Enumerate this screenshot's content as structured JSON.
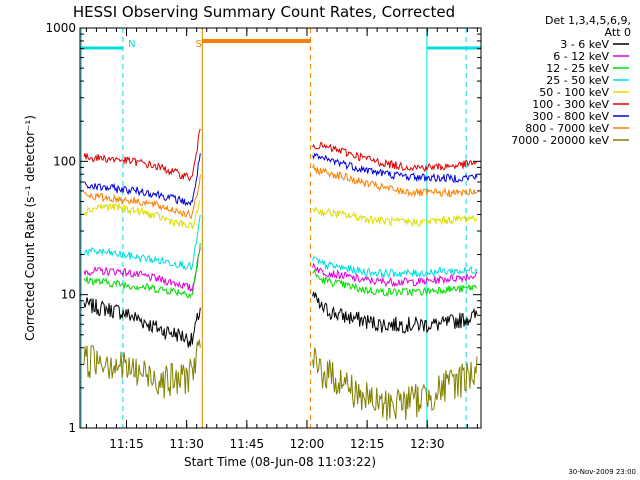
{
  "chart_data": {
    "type": "line",
    "title": "HESSI Observing Summary Count Rates, Corrected",
    "xlabel": "Start Time (08-Jun-08 11:03:22)",
    "ylabel": "Corrected Count Rate (s⁻¹ detector⁻¹)",
    "y_scale": "log",
    "ylim": [
      1,
      1000
    ],
    "x_range_minutes": [
      0,
      100
    ],
    "x_ticks": [
      {
        "label": "11:15",
        "minute": 11.6
      },
      {
        "label": "11:30",
        "minute": 26.6
      },
      {
        "label": "11:45",
        "minute": 41.6
      },
      {
        "label": "12:00",
        "minute": 56.6
      },
      {
        "label": "12:15",
        "minute": 71.6
      },
      {
        "label": "12:30",
        "minute": 86.6
      }
    ],
    "y_ticks": [
      "1",
      "10",
      "100",
      "1000"
    ],
    "data_gaps_minutes": [
      [
        31,
        58
      ]
    ],
    "legend_title": [
      "Det 1,3,4,5,6,9,",
      "Att 0"
    ],
    "series": [
      {
        "name": "3 - 6 keV",
        "color": "#000000",
        "points": [
          [
            1,
            8.5
          ],
          [
            5,
            8
          ],
          [
            10,
            7.5
          ],
          [
            15,
            6.5
          ],
          [
            20,
            5.5
          ],
          [
            25,
            5
          ],
          [
            28,
            4.5
          ],
          [
            30,
            8
          ],
          [
            58,
            10
          ],
          [
            60,
            8
          ],
          [
            65,
            7
          ],
          [
            70,
            6.5
          ],
          [
            75,
            6
          ],
          [
            80,
            6
          ],
          [
            85,
            6
          ],
          [
            90,
            6
          ],
          [
            95,
            6.5
          ],
          [
            99,
            7
          ]
        ]
      },
      {
        "name": "6 - 12 keV",
        "color": "#dd00dd",
        "points": [
          [
            1,
            15
          ],
          [
            5,
            15
          ],
          [
            10,
            15
          ],
          [
            15,
            14
          ],
          [
            20,
            13
          ],
          [
            25,
            12
          ],
          [
            28,
            11
          ],
          [
            30,
            22
          ],
          [
            58,
            17
          ],
          [
            60,
            15
          ],
          [
            65,
            14
          ],
          [
            70,
            13
          ],
          [
            75,
            12.5
          ],
          [
            80,
            12.5
          ],
          [
            85,
            12.5
          ],
          [
            90,
            13
          ],
          [
            95,
            13.5
          ],
          [
            99,
            14
          ]
        ]
      },
      {
        "name": "12 - 25 keV",
        "color": "#00dd00",
        "points": [
          [
            1,
            13
          ],
          [
            5,
            12.5
          ],
          [
            10,
            12
          ],
          [
            15,
            11.5
          ],
          [
            20,
            11
          ],
          [
            25,
            10.5
          ],
          [
            28,
            10
          ],
          [
            30,
            24
          ],
          [
            58,
            15
          ],
          [
            60,
            13
          ],
          [
            65,
            12
          ],
          [
            70,
            11
          ],
          [
            75,
            10.5
          ],
          [
            80,
            10.5
          ],
          [
            85,
            10.5
          ],
          [
            90,
            11
          ],
          [
            95,
            11
          ],
          [
            99,
            11.5
          ]
        ]
      },
      {
        "name": "25 - 50 keV",
        "color": "#00dddd",
        "points": [
          [
            1,
            21
          ],
          [
            5,
            21
          ],
          [
            10,
            20
          ],
          [
            15,
            19
          ],
          [
            20,
            18
          ],
          [
            25,
            17
          ],
          [
            28,
            16
          ],
          [
            30,
            38
          ],
          [
            58,
            19
          ],
          [
            60,
            17
          ],
          [
            65,
            16
          ],
          [
            70,
            15
          ],
          [
            75,
            14.5
          ],
          [
            80,
            14.5
          ],
          [
            85,
            14.5
          ],
          [
            90,
            15
          ],
          [
            95,
            15
          ],
          [
            99,
            15.5
          ]
        ]
      },
      {
        "name": "50 - 100 keV",
        "color": "#dddd00",
        "points": [
          [
            1,
            42
          ],
          [
            5,
            46
          ],
          [
            10,
            45
          ],
          [
            15,
            42
          ],
          [
            20,
            38
          ],
          [
            25,
            34
          ],
          [
            28,
            32
          ],
          [
            30,
            50
          ],
          [
            58,
            45
          ],
          [
            60,
            42
          ],
          [
            65,
            40
          ],
          [
            70,
            38
          ],
          [
            75,
            36
          ],
          [
            80,
            35
          ],
          [
            85,
            35
          ],
          [
            90,
            36
          ],
          [
            95,
            37
          ],
          [
            99,
            38
          ]
        ]
      },
      {
        "name": "100 - 300 keV",
        "color": "#dd0000",
        "points": [
          [
            1,
            108
          ],
          [
            5,
            106
          ],
          [
            10,
            103
          ],
          [
            15,
            98
          ],
          [
            20,
            90
          ],
          [
            25,
            80
          ],
          [
            28,
            75
          ],
          [
            30,
            175
          ],
          [
            58,
            135
          ],
          [
            60,
            130
          ],
          [
            65,
            120
          ],
          [
            70,
            108
          ],
          [
            75,
            98
          ],
          [
            80,
            92
          ],
          [
            85,
            90
          ],
          [
            90,
            91
          ],
          [
            95,
            94
          ],
          [
            99,
            98
          ]
        ]
      },
      {
        "name": "300 - 800 keV",
        "color": "#0000dd",
        "points": [
          [
            1,
            66
          ],
          [
            5,
            64
          ],
          [
            10,
            62
          ],
          [
            15,
            60
          ],
          [
            20,
            56
          ],
          [
            25,
            51
          ],
          [
            28,
            48
          ],
          [
            30,
            115
          ],
          [
            58,
            108
          ],
          [
            60,
            105
          ],
          [
            65,
            98
          ],
          [
            70,
            88
          ],
          [
            75,
            82
          ],
          [
            80,
            78
          ],
          [
            85,
            76
          ],
          [
            90,
            75
          ],
          [
            95,
            75
          ],
          [
            99,
            77
          ]
        ]
      },
      {
        "name": "800 - 7000 keV",
        "color": "#ff7f00",
        "points": [
          [
            1,
            56
          ],
          [
            5,
            54
          ],
          [
            10,
            52
          ],
          [
            15,
            50
          ],
          [
            20,
            46
          ],
          [
            25,
            42
          ],
          [
            28,
            39
          ],
          [
            30,
            75
          ],
          [
            58,
            88
          ],
          [
            60,
            85
          ],
          [
            65,
            78
          ],
          [
            70,
            70
          ],
          [
            75,
            64
          ],
          [
            80,
            60
          ],
          [
            85,
            58
          ],
          [
            90,
            58
          ],
          [
            95,
            58
          ],
          [
            99,
            60
          ]
        ]
      },
      {
        "name": "7000 - 20000 keV",
        "color": "#808000",
        "points": [
          [
            1,
            3.3
          ],
          [
            5,
            3.4
          ],
          [
            10,
            3
          ],
          [
            15,
            2.6
          ],
          [
            20,
            2.4
          ],
          [
            25,
            2.3
          ],
          [
            28,
            2.8
          ],
          [
            30,
            4
          ],
          [
            58,
            3.2
          ],
          [
            60,
            2.8
          ],
          [
            65,
            2.3
          ],
          [
            70,
            1.8
          ],
          [
            75,
            1.5
          ],
          [
            80,
            1.6
          ],
          [
            85,
            1.7
          ],
          [
            90,
            2
          ],
          [
            95,
            2.4
          ],
          [
            99,
            2.8
          ]
        ]
      }
    ],
    "annotations": [
      {
        "text": "N",
        "color": "#00dddd"
      },
      {
        "text": "S",
        "color": "#ff7f00"
      }
    ],
    "night_intervals_minutes": [
      [
        0,
        10.7
      ],
      [
        86.5,
        100
      ]
    ],
    "saa_interval_minutes": [
      [
        30.5,
        57.5
      ]
    ],
    "vertical_lines_minutes": [
      {
        "minute": 0.3,
        "color": "#00dddd",
        "style": "solid"
      },
      {
        "minute": 10.7,
        "color": "#00dddd",
        "style": "dashed"
      },
      {
        "minute": 86.5,
        "color": "#00dddd",
        "style": "solid"
      },
      {
        "minute": 96.3,
        "color": "#00dddd",
        "style": "dashed"
      },
      {
        "minute": 30.5,
        "color": "#c88a00",
        "style": "solid"
      },
      {
        "minute": 57.5,
        "color": "#ff7f00",
        "style": "dashed"
      }
    ],
    "footer": "30-Nov-2009 23:00"
  }
}
